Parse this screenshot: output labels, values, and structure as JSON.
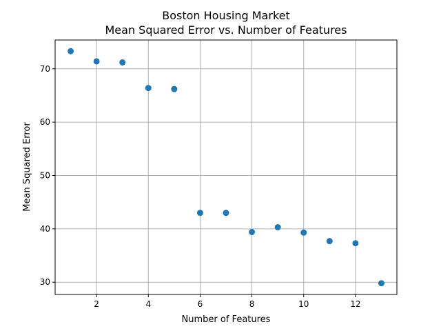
{
  "chart_data": {
    "type": "scatter",
    "title": "Boston Housing Market",
    "subtitle": "Mean Squared Error vs. Number of Features",
    "xlabel": "Number of Features",
    "ylabel": "Mean Squared Error",
    "xlim": [
      0.4,
      13.6
    ],
    "ylim": [
      27.7,
      75.4
    ],
    "xticks": [
      2,
      4,
      6,
      8,
      10,
      12
    ],
    "yticks": [
      30,
      40,
      50,
      60,
      70
    ],
    "grid": true,
    "color": "#1f77b4",
    "x": [
      1,
      2,
      3,
      4,
      5,
      6,
      7,
      8,
      9,
      10,
      11,
      12,
      13
    ],
    "y": [
      73.3,
      71.4,
      71.2,
      66.4,
      66.2,
      43.0,
      43.0,
      39.4,
      40.3,
      39.3,
      37.7,
      37.3,
      29.8
    ]
  }
}
